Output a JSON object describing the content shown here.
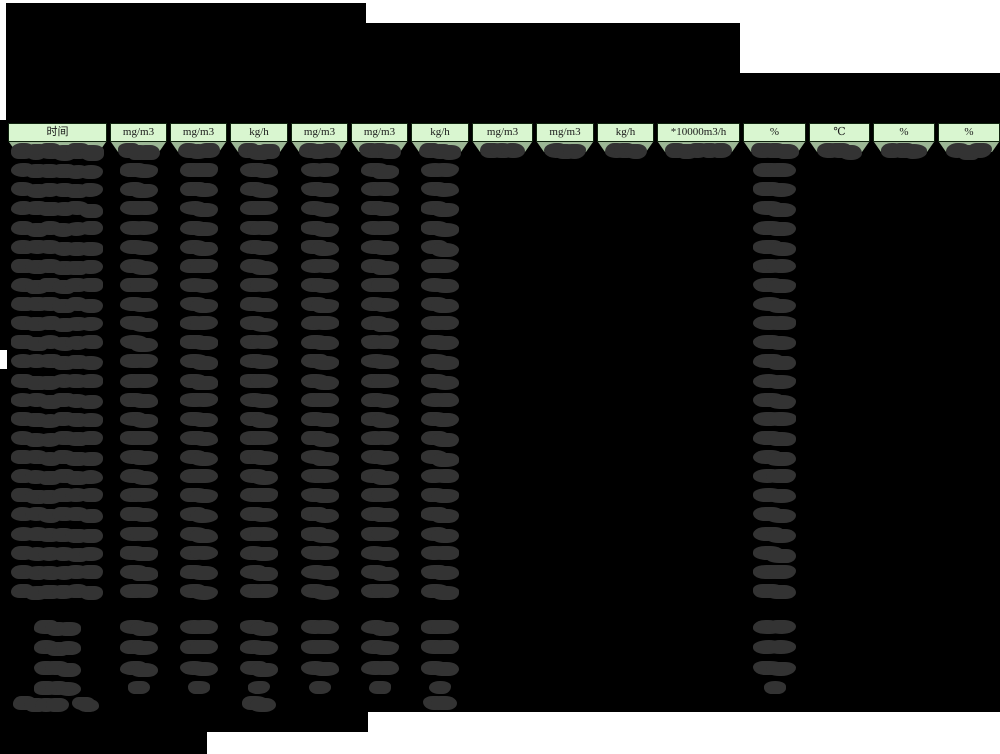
{
  "page": {
    "background": "#ffffff",
    "redaction_block_color": "#000000",
    "redaction_blob_color": "#333333"
  },
  "table": {
    "columns": [
      "时间",
      "mg/m3",
      "mg/m3",
      "kg/h",
      "mg/m3",
      "mg/m3",
      "kg/h",
      "mg/m3",
      "mg/m3",
      "kg/h",
      "*10000m3/h",
      "%",
      "℃",
      "%",
      "%"
    ],
    "header_style": {
      "fill": "#d9f6d0",
      "text_color": "#1a1a1a",
      "border_color": "#10240f"
    },
    "first_data_row_fill": "#9cb795",
    "redacted_content": {
      "data_row_count": 24,
      "timestamp_column_index": 0,
      "value_columns_all_rows": [
        1,
        2,
        3,
        4,
        5,
        6,
        11
      ],
      "value_columns_first_row_only": [
        7,
        8,
        9,
        10,
        12,
        13,
        14
      ],
      "summary_row_count": 4,
      "summary_label_column_index": 0,
      "summary_value_columns": [
        1,
        2,
        3,
        4,
        5,
        6,
        11
      ],
      "footer_row": {
        "label_column_index": 0,
        "value_columns": [
          3,
          6
        ]
      }
    }
  }
}
